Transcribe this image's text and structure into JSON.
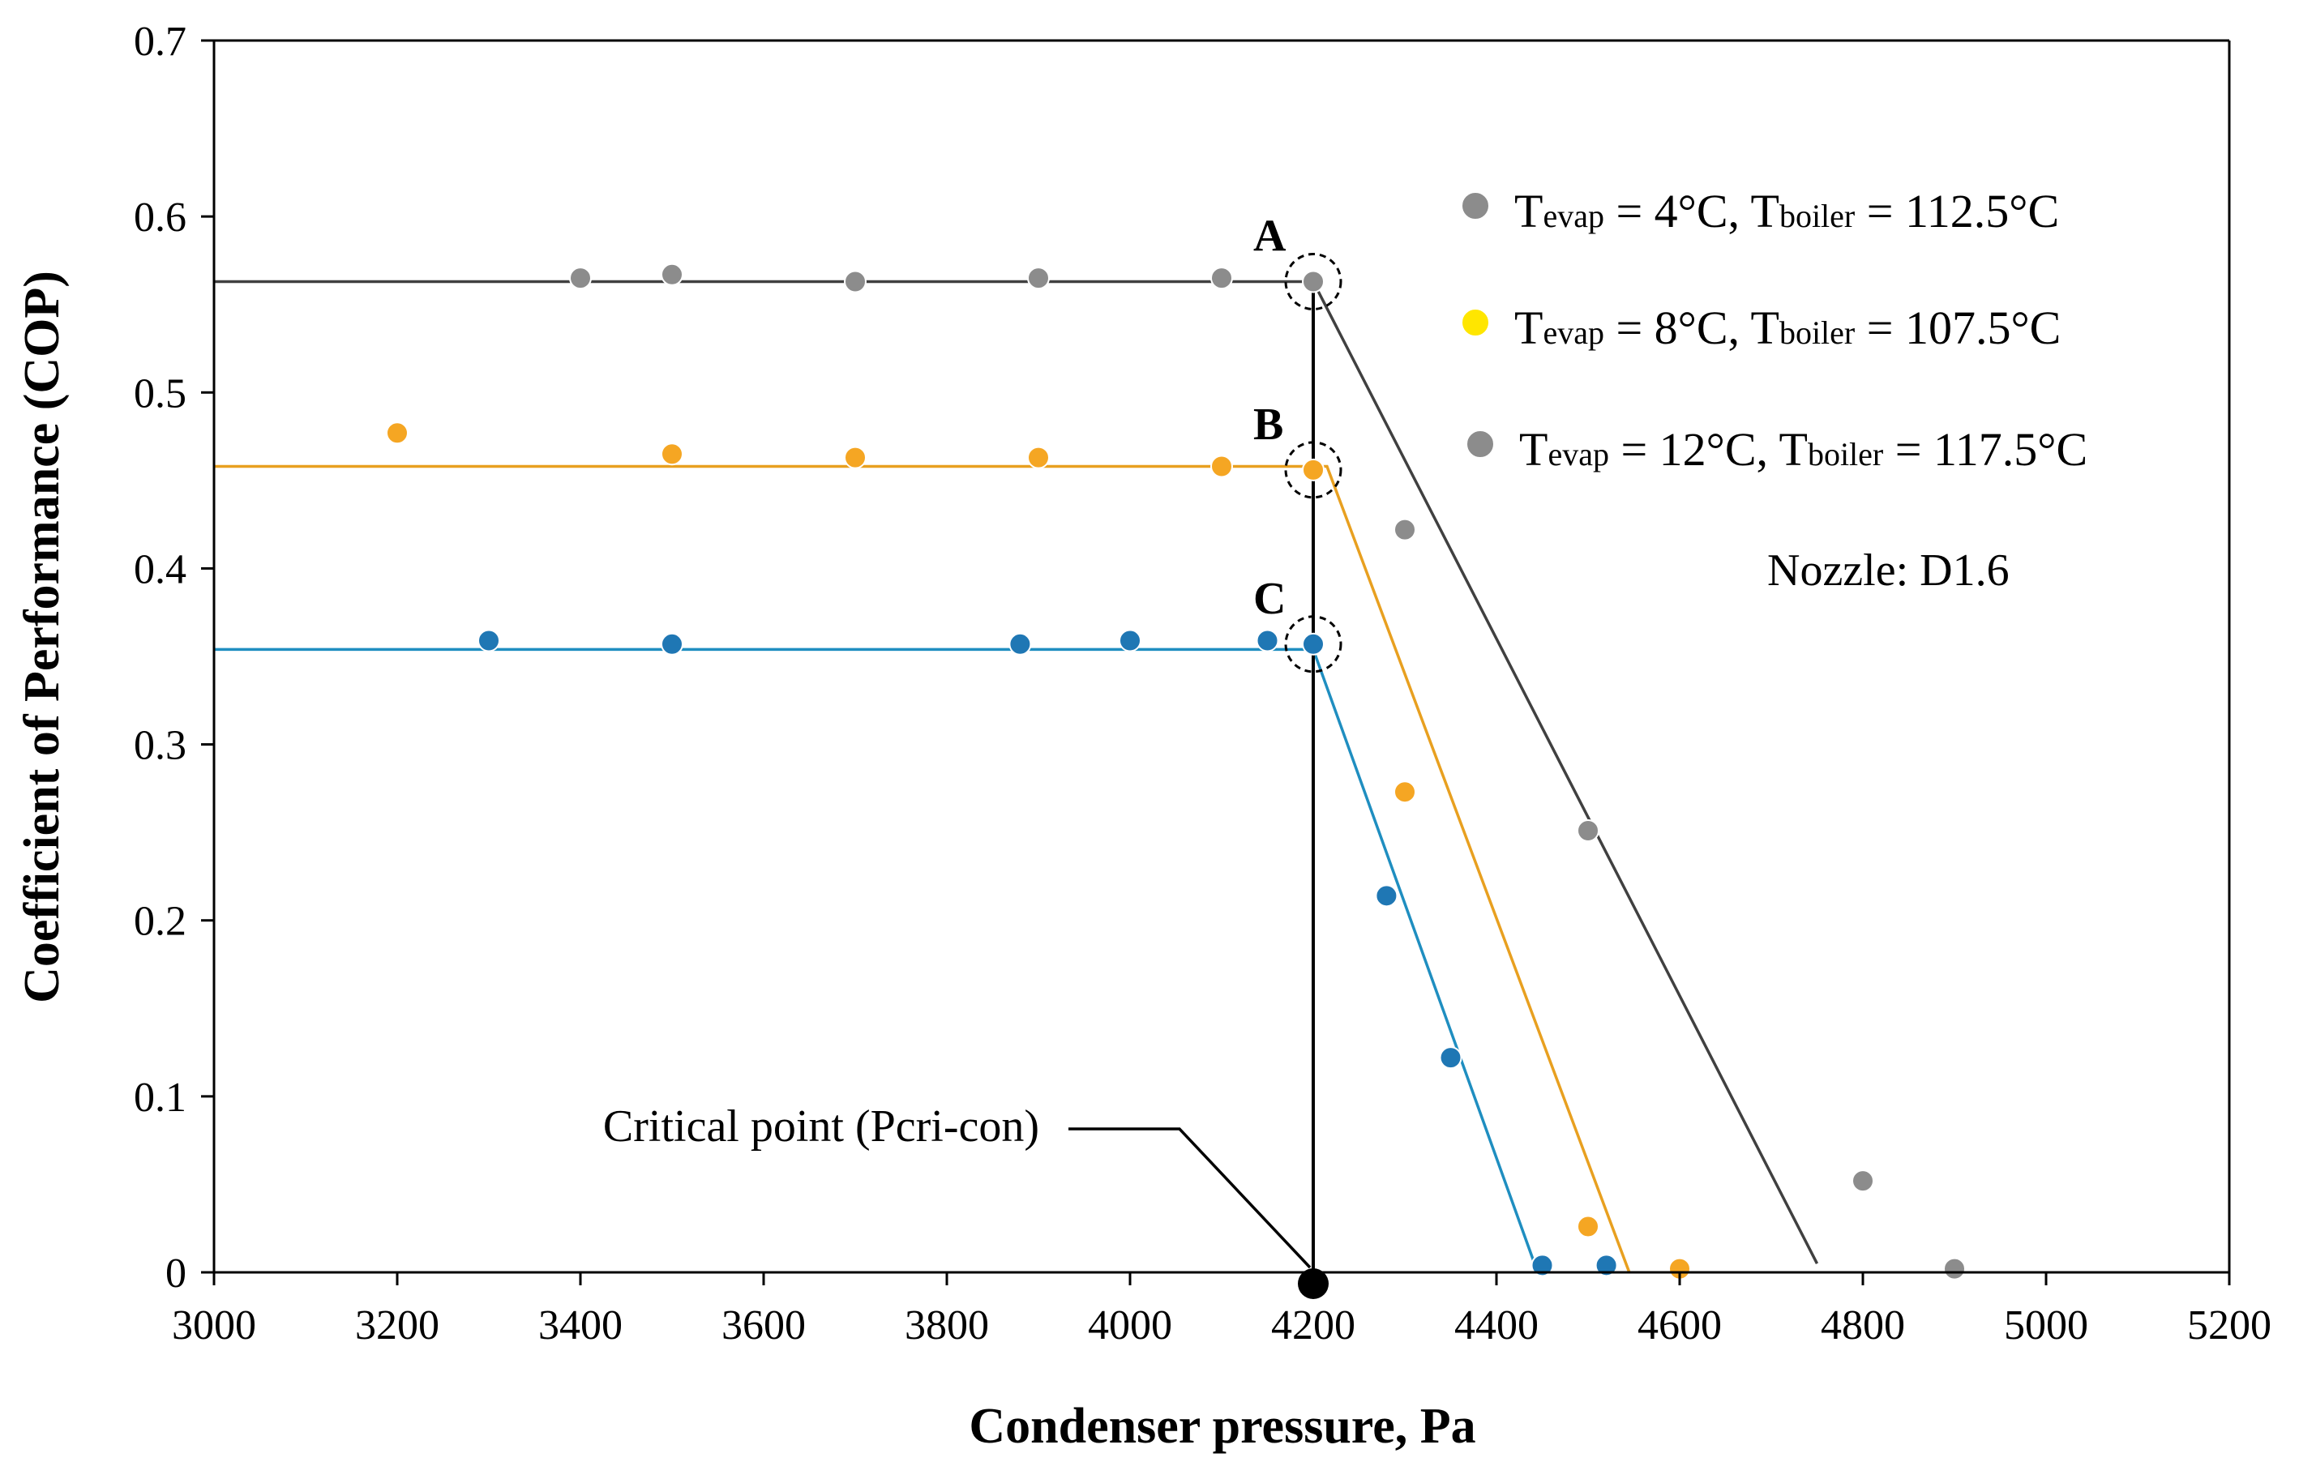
{
  "chart_data": {
    "type": "scatter",
    "xlabel": "Condenser pressure, Pa",
    "ylabel": "Coefficient of Performance (COP)",
    "xlim": [
      3000,
      5200
    ],
    "ylim": [
      0,
      0.7
    ],
    "xticks": [
      3000,
      3200,
      3400,
      3600,
      3800,
      4000,
      4200,
      4400,
      4600,
      4800,
      5000,
      5200
    ],
    "yticks": [
      0,
      0.1,
      0.2,
      0.3,
      0.4,
      0.5,
      0.6,
      0.7
    ],
    "ytick_labels": [
      "0",
      "0.1",
      "0.2",
      "0.3",
      "0.4",
      "0.5",
      "0.6",
      "0.7"
    ],
    "grid": false,
    "series": [
      {
        "name": "A",
        "legend_parts": [
          "T",
          "evap",
          " = 4°C, T",
          "boiler",
          " = 112.5°C"
        ],
        "color": "#8c8c8c",
        "line_color": "#404040",
        "points": [
          [
            3400,
            0.565
          ],
          [
            3500,
            0.567
          ],
          [
            3700,
            0.563
          ],
          [
            3900,
            0.565
          ],
          [
            4100,
            0.565
          ],
          [
            4200,
            0.563
          ],
          [
            4300,
            0.422
          ],
          [
            4500,
            0.251
          ],
          [
            4800,
            0.052
          ],
          [
            4900,
            0.002
          ]
        ],
        "fit": [
          [
            3000,
            0.563
          ],
          [
            4200,
            0.563
          ],
          [
            4750,
            0.005
          ]
        ]
      },
      {
        "name": "B",
        "legend_parts": [
          "T",
          "evap",
          " = 8°C, T",
          "boiler",
          " = 107.5°C"
        ],
        "color": "#f5a623",
        "legend_marker_color": "#ffe600",
        "line_color": "#e8a020",
        "points": [
          [
            3200,
            0.477
          ],
          [
            3500,
            0.465
          ],
          [
            3700,
            0.463
          ],
          [
            3900,
            0.463
          ],
          [
            4100,
            0.458
          ],
          [
            4200,
            0.456
          ],
          [
            4300,
            0.273
          ],
          [
            4500,
            0.026
          ],
          [
            4600,
            0.002
          ]
        ],
        "fit": [
          [
            3000,
            0.458
          ],
          [
            4215,
            0.458
          ],
          [
            4545,
            0.0
          ]
        ]
      },
      {
        "name": "C",
        "legend_parts": [
          "T",
          "evap",
          " = 12°C, T",
          "boiler",
          " = 117.5°C"
        ],
        "color": "#1f77b4",
        "legend_marker_color": "#8c8c8c",
        "line_color": "#1f8ec0",
        "points": [
          [
            3300,
            0.359
          ],
          [
            3500,
            0.357
          ],
          [
            3880,
            0.357
          ],
          [
            4000,
            0.359
          ],
          [
            4150,
            0.359
          ],
          [
            4200,
            0.357
          ],
          [
            4280,
            0.214
          ],
          [
            4350,
            0.122
          ],
          [
            4450,
            0.004
          ],
          [
            4520,
            0.004
          ]
        ],
        "fit": [
          [
            3000,
            0.354
          ],
          [
            4200,
            0.354
          ],
          [
            4445,
            0.0
          ]
        ]
      }
    ],
    "critical_point": {
      "x": 4200,
      "y": 0,
      "label": "Critical point (Pcri-con)"
    },
    "circled_points": [
      {
        "label": "A",
        "x": 4200,
        "y": 0.563
      },
      {
        "label": "B",
        "x": 4200,
        "y": 0.456
      },
      {
        "label": "C",
        "x": 4200,
        "y": 0.357
      }
    ],
    "annotations": [
      "Nozzle: D1.6"
    ]
  }
}
